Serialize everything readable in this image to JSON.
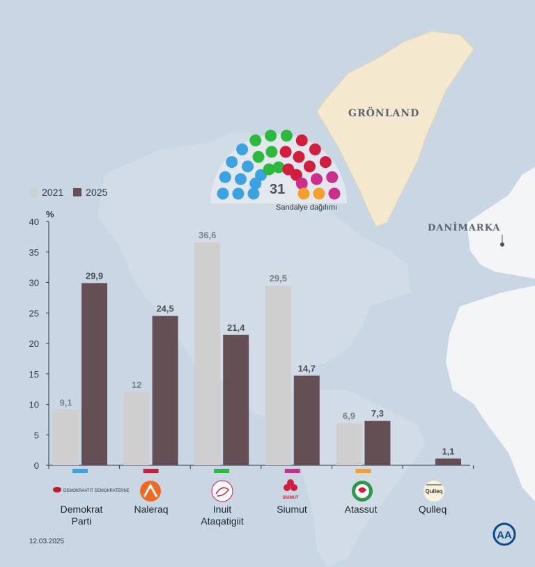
{
  "map_labels": {
    "greenland": "GRÖNLAND",
    "denmark": "DANİMARKA"
  },
  "seats": {
    "total": "31",
    "caption": "Sandalye dağılımı",
    "parties": [
      {
        "party": "Demokrat Parti",
        "seats": 10,
        "color": "#3aa3e0"
      },
      {
        "party": "Inuit Ataqatigiit",
        "seats": 7,
        "color": "#2cba3e"
      },
      {
        "party": "Naleraq",
        "seats": 8,
        "color": "#d21d3c"
      },
      {
        "party": "Siumut",
        "seats": 4,
        "color": "#cc2e8c"
      },
      {
        "party": "Atassut",
        "seats": 2,
        "color": "#f5a02a"
      }
    ]
  },
  "legend": [
    {
      "label": "2021",
      "color": "#cfcfcf"
    },
    {
      "label": "2025",
      "color": "#644f55"
    }
  ],
  "chart_data": {
    "type": "bar",
    "ylabel": "%",
    "ylim": [
      0,
      40
    ],
    "yticks": [
      0,
      5,
      10,
      15,
      20,
      25,
      30,
      35,
      40
    ],
    "grid": false,
    "legend_position": "top-left",
    "categories": [
      "Demokrat\nParti",
      "Naleraq",
      "Inuit\nAtaqatigiit",
      "Siumut",
      "Atassut",
      "Qulleq"
    ],
    "category_colors": [
      "#3aa3e0",
      "#d21d3c",
      "#2cba3e",
      "#cc2e8c",
      "#f5a02a",
      ""
    ],
    "series": [
      {
        "name": "2021",
        "values": [
          9.1,
          12,
          36.6,
          29.5,
          6.9,
          null
        ],
        "labels": [
          "9,1",
          "12",
          "36,6",
          "29,5",
          "6,9",
          ""
        ],
        "color": "#cfcfcf"
      },
      {
        "name": "2025",
        "values": [
          29.9,
          24.5,
          21.4,
          14.7,
          7.3,
          1.1
        ],
        "labels": [
          "29,9",
          "24,5",
          "21,4",
          "14,7",
          "7,3",
          "1,1"
        ],
        "color": "#644f55"
      }
    ]
  },
  "logos": [
    {
      "name": "demokraatit-logo",
      "text": "DEMOKRAATIT DEMOKRATERNE"
    },
    {
      "name": "naleraq-logo",
      "text": ""
    },
    {
      "name": "inuit-ataqatigiit-logo",
      "text": ""
    },
    {
      "name": "siumut-logo",
      "text": "SIUMUT"
    },
    {
      "name": "atassut-logo",
      "text": ""
    },
    {
      "name": "qulleq-logo",
      "text": "Qulleq"
    }
  ],
  "date": "12.03.2025",
  "agency_logo": "AA"
}
